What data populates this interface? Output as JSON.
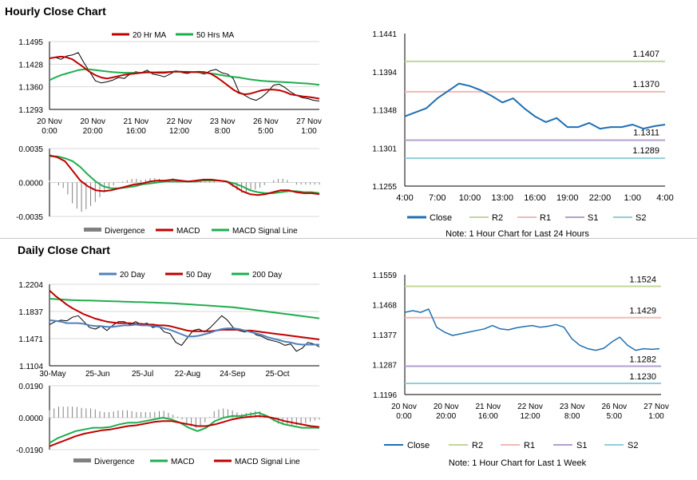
{
  "hourly_title": "Hourly Close Chart",
  "daily_title": "Daily Close Chart",
  "colors": {
    "close": "#1f6fb2",
    "ma20": "#c00000",
    "ma50": "#1fae4e",
    "ma200": "#1fae4e",
    "r2": "#c3d69b",
    "r1": "#f2b8b8",
    "s1": "#b09fd0",
    "s2": "#92cddc",
    "hist": "#808080",
    "grid": "#d9d9d9",
    "daily_ma20": "#4f81bd"
  },
  "chart_data": [
    {
      "id": "hourly_price",
      "type": "line",
      "legend": [
        "20 Hr MA",
        "50 Hrs MA"
      ],
      "y_ticks": [
        "1.1495",
        "1.1428",
        "1.1360",
        "1.1293"
      ],
      "ylim": [
        1.1293,
        1.1495
      ],
      "x_ticks": [
        [
          "20 Nov",
          "0:00"
        ],
        [
          "20 Nov",
          "20:00"
        ],
        [
          "21 Nov",
          "16:00"
        ],
        [
          "22 Nov",
          "12:00"
        ],
        [
          "23 Nov",
          "8:00"
        ],
        [
          "26 Nov",
          "5:00"
        ],
        [
          "27 Nov",
          "1:00"
        ]
      ],
      "series": [
        {
          "name": "Price",
          "values": [
            1.1445,
            1.1448,
            1.1442,
            1.1452,
            1.1455,
            1.1462,
            1.1432,
            1.1405,
            1.1378,
            1.1372,
            1.1375,
            1.138,
            1.1388,
            1.1385,
            1.1398,
            1.1405,
            1.1402,
            1.141,
            1.1398,
            1.1395,
            1.139,
            1.1398,
            1.1408,
            1.1403,
            1.14,
            1.1405,
            1.1402,
            1.1398,
            1.1408,
            1.1412,
            1.1402,
            1.1398,
            1.1385,
            1.1345,
            1.1335,
            1.1325,
            1.132,
            1.133,
            1.1345,
            1.1365,
            1.1368,
            1.1358,
            1.1345,
            1.1335,
            1.1328,
            1.1325,
            1.132,
            1.1318
          ]
        },
        {
          "name": "20 Hr MA",
          "values": [
            1.1445,
            1.1448,
            1.145,
            1.1448,
            1.1442,
            1.143,
            1.1418,
            1.1405,
            1.1395,
            1.1388,
            1.1385,
            1.1388,
            1.1392,
            1.1396,
            1.1398,
            1.14,
            1.1402,
            1.1404,
            1.1403,
            1.1402,
            1.1402,
            1.1404,
            1.1406,
            1.1405,
            1.1404,
            1.1404,
            1.1405,
            1.1404,
            1.14,
            1.139,
            1.1378,
            1.1365,
            1.1352,
            1.1342,
            1.1338,
            1.134,
            1.1345,
            1.135,
            1.1352,
            1.1352,
            1.135,
            1.1345,
            1.1338,
            1.1335,
            1.1332,
            1.133,
            1.1328,
            1.1325
          ]
        },
        {
          "name": "50 Hrs MA",
          "values": [
            1.138,
            1.1388,
            1.1395,
            1.14,
            1.1405,
            1.141,
            1.1412,
            1.1412,
            1.141,
            1.1408,
            1.1406,
            1.1404,
            1.1403,
            1.1402,
            1.1402,
            1.1402,
            1.1402,
            1.1403,
            1.1403,
            1.1404,
            1.1404,
            1.1405,
            1.1405,
            1.1405,
            1.1405,
            1.1404,
            1.1403,
            1.1402,
            1.14,
            1.1398,
            1.1395,
            1.1392,
            1.139,
            1.1388,
            1.1385,
            1.1382,
            1.138,
            1.1378,
            1.1377,
            1.1376,
            1.1375,
            1.1374,
            1.1373,
            1.1372,
            1.1371,
            1.137,
            1.1368,
            1.1366
          ]
        }
      ]
    },
    {
      "id": "hourly_macd",
      "type": "line",
      "legend": [
        "Divergence",
        "MACD",
        "MACD Signal Line"
      ],
      "y_ticks": [
        "0.0035",
        "0.0000",
        "-0.0035"
      ],
      "ylim": [
        -0.0035,
        0.0035
      ],
      "series": [
        {
          "name": "MACD",
          "values": [
            0.0028,
            0.0026,
            0.0022,
            0.0012,
            0.0002,
            -0.0004,
            -0.0008,
            -0.0009,
            -0.0008,
            -0.0006,
            -0.0004,
            -0.0002,
            -0.0001,
            0.0001,
            0.0002,
            0.0002,
            0.0003,
            0.0002,
            0.0001,
            0.0002,
            0.0003,
            0.0003,
            0.0002,
            0.0001,
            -0.0004,
            -0.0009,
            -0.0012,
            -0.0013,
            -0.0012,
            -0.001,
            -0.0008,
            -0.0008,
            -0.001,
            -0.0011,
            -0.0011,
            -0.0012
          ]
        },
        {
          "name": "MACD Signal Line",
          "values": [
            0.0027,
            0.0027,
            0.0025,
            0.0022,
            0.0016,
            0.0008,
            0.0001,
            -0.0004,
            -0.0006,
            -0.0006,
            -0.0005,
            -0.0004,
            -0.0002,
            -0.0001,
            0.0,
            0.0001,
            0.0001,
            0.0001,
            0.0001,
            0.0001,
            0.0002,
            0.0002,
            0.0002,
            0.0001,
            -0.0001,
            -0.0004,
            -0.0008,
            -0.001,
            -0.0011,
            -0.0011,
            -0.001,
            -0.0009,
            -0.0009,
            -0.001,
            -0.001,
            -0.0011
          ]
        }
      ]
    },
    {
      "id": "hourly_pivot",
      "type": "line",
      "y_ticks": [
        "1.1441",
        "1.1394",
        "1.1348",
        "1.1301",
        "1.1255"
      ],
      "ylim": [
        1.1255,
        1.1441
      ],
      "x_ticks": [
        "4:00",
        "7:00",
        "10:00",
        "13:00",
        "16:00",
        "19:00",
        "22:00",
        "1:00",
        "4:00"
      ],
      "levels": [
        {
          "name": "R2",
          "value": "1.1407"
        },
        {
          "name": "R1",
          "value": "1.1370"
        },
        {
          "name": "S1",
          "value": "1.1311"
        },
        {
          "name": "S2",
          "value": "1.1289"
        }
      ],
      "legend": [
        "Close",
        "R2",
        "R1",
        "S1",
        "S2"
      ],
      "note": "Note: 1 Hour Chart for Last 24 Hours",
      "close": [
        1.134,
        1.1345,
        1.135,
        1.1362,
        1.1371,
        1.138,
        1.1377,
        1.1372,
        1.1365,
        1.1357,
        1.1362,
        1.135,
        1.134,
        1.1333,
        1.1338,
        1.1327,
        1.1327,
        1.1332,
        1.1325,
        1.1327,
        1.1327,
        1.133,
        1.1325,
        1.1328,
        1.133
      ]
    },
    {
      "id": "daily_price",
      "type": "line",
      "legend": [
        "20 Day",
        "50 Day",
        "200 Day"
      ],
      "y_ticks": [
        "1.2204",
        "1.1837",
        "1.1471",
        "1.1104"
      ],
      "ylim": [
        1.1104,
        1.2204
      ],
      "x_ticks": [
        "30-May",
        "25-Jun",
        "25-Jul",
        "22-Aug",
        "24-Sep",
        "25-Oct"
      ],
      "series": [
        {
          "name": "Price",
          "values": [
            1.166,
            1.17,
            1.172,
            1.171,
            1.176,
            1.178,
            1.17,
            1.162,
            1.16,
            1.164,
            1.158,
            1.165,
            1.17,
            1.17,
            1.166,
            1.17,
            1.166,
            1.168,
            1.162,
            1.164,
            1.156,
            1.154,
            1.142,
            1.138,
            1.148,
            1.158,
            1.16,
            1.156,
            1.162,
            1.17,
            1.178,
            1.172,
            1.162,
            1.158,
            1.156,
            1.158,
            1.152,
            1.15,
            1.146,
            1.144,
            1.142,
            1.138,
            1.14,
            1.13,
            1.134,
            1.142,
            1.14,
            1.136
          ]
        },
        {
          "name": "20 Day",
          "values": [
            1.172,
            1.171,
            1.17,
            1.168,
            1.168,
            1.168,
            1.167,
            1.165,
            1.164,
            1.164,
            1.163,
            1.163,
            1.164,
            1.165,
            1.165,
            1.166,
            1.165,
            1.165,
            1.164,
            1.163,
            1.161,
            1.159,
            1.156,
            1.153,
            1.15,
            1.15,
            1.151,
            1.153,
            1.155,
            1.158,
            1.16,
            1.161,
            1.161,
            1.16,
            1.158,
            1.156,
            1.154,
            1.152,
            1.149,
            1.147,
            1.145,
            1.143,
            1.142,
            1.14,
            1.139,
            1.139,
            1.139,
            1.139
          ]
        },
        {
          "name": "50 Day",
          "values": [
            1.212,
            1.205,
            1.199,
            1.193,
            1.188,
            1.184,
            1.18,
            1.177,
            1.174,
            1.172,
            1.17,
            1.169,
            1.168,
            1.168,
            1.168,
            1.167,
            1.167,
            1.166,
            1.166,
            1.165,
            1.165,
            1.164,
            1.162,
            1.16,
            1.158,
            1.157,
            1.157,
            1.157,
            1.157,
            1.158,
            1.159,
            1.159,
            1.159,
            1.159,
            1.158,
            1.158,
            1.157,
            1.156,
            1.155,
            1.154,
            1.153,
            1.152,
            1.151,
            1.15,
            1.149,
            1.148,
            1.147,
            1.146
          ]
        },
        {
          "name": "200 Day",
          "values": [
            1.201,
            1.2005,
            1.2,
            1.1995,
            1.199,
            1.1988,
            1.1985,
            1.1985,
            1.1983,
            1.198,
            1.1978,
            1.1975,
            1.1973,
            1.197,
            1.1968,
            1.1965,
            1.1963,
            1.196,
            1.1958,
            1.1955,
            1.1952,
            1.195,
            1.1945,
            1.194,
            1.1935,
            1.193,
            1.1925,
            1.192,
            1.1915,
            1.191,
            1.1905,
            1.19,
            1.1895,
            1.1885,
            1.1875,
            1.1865,
            1.1855,
            1.1845,
            1.1835,
            1.1825,
            1.1815,
            1.1805,
            1.1795,
            1.1785,
            1.1775,
            1.1765,
            1.1755,
            1.1745
          ]
        }
      ]
    },
    {
      "id": "daily_macd",
      "type": "line",
      "legend": [
        "Divergence",
        "MACD",
        "MACD Signal Line"
      ],
      "y_ticks": [
        "0.0190",
        "0.0000",
        "-0.0190"
      ],
      "ylim": [
        -0.019,
        0.019
      ],
      "series": [
        {
          "name": "MACD",
          "values": [
            -0.015,
            -0.012,
            -0.01,
            -0.008,
            -0.007,
            -0.006,
            -0.006,
            -0.0055,
            -0.004,
            -0.003,
            -0.003,
            -0.002,
            -0.001,
            0.0,
            -0.001,
            -0.003,
            -0.006,
            -0.008,
            -0.006,
            -0.002,
            0.0,
            0.001,
            0.001,
            0.002,
            0.003,
            0.001,
            -0.002,
            -0.004,
            -0.005,
            -0.006,
            -0.006,
            -0.006
          ]
        },
        {
          "name": "MACD Signal Line",
          "values": [
            -0.017,
            -0.015,
            -0.013,
            -0.011,
            -0.0095,
            -0.0085,
            -0.0075,
            -0.007,
            -0.006,
            -0.005,
            -0.0045,
            -0.0035,
            -0.0025,
            -0.002,
            -0.002,
            -0.003,
            -0.004,
            -0.005,
            -0.005,
            -0.004,
            -0.0025,
            -0.001,
            0.0,
            0.0005,
            0.001,
            0.0005,
            -0.0005,
            -0.002,
            -0.003,
            -0.004,
            -0.005,
            -0.0055
          ]
        }
      ]
    },
    {
      "id": "daily_pivot",
      "type": "line",
      "y_ticks": [
        "1.1559",
        "1.1468",
        "1.1377",
        "1.1287",
        "1.1196"
      ],
      "ylim": [
        1.1196,
        1.1559
      ],
      "x_ticks": [
        [
          "20 Nov",
          "0:00"
        ],
        [
          "20 Nov",
          "20:00"
        ],
        [
          "21 Nov",
          "16:00"
        ],
        [
          "22 Nov",
          "12:00"
        ],
        [
          "23 Nov",
          "8:00"
        ],
        [
          "26 Nov",
          "5:00"
        ],
        [
          "27 Nov",
          "1:00"
        ]
      ],
      "levels": [
        {
          "name": "R2",
          "value": "1.1524"
        },
        {
          "name": "R1",
          "value": "1.1429"
        },
        {
          "name": "S1",
          "value": "1.1282"
        },
        {
          "name": "S2",
          "value": "1.1230"
        }
      ],
      "legend": [
        "Close",
        "R2",
        "R1",
        "S1",
        "S2"
      ],
      "note": "Note: 1 Hour Chart for Last 1 Week",
      "close": [
        1.1445,
        1.145,
        1.1445,
        1.1455,
        1.14,
        1.1385,
        1.1375,
        1.138,
        1.1385,
        1.139,
        1.1395,
        1.1405,
        1.1395,
        1.1392,
        1.1398,
        1.1402,
        1.1405,
        1.14,
        1.1403,
        1.1408,
        1.14,
        1.1365,
        1.1345,
        1.1335,
        1.133,
        1.1336,
        1.1355,
        1.137,
        1.1345,
        1.133,
        1.1335,
        1.1333,
        1.1335
      ]
    }
  ]
}
